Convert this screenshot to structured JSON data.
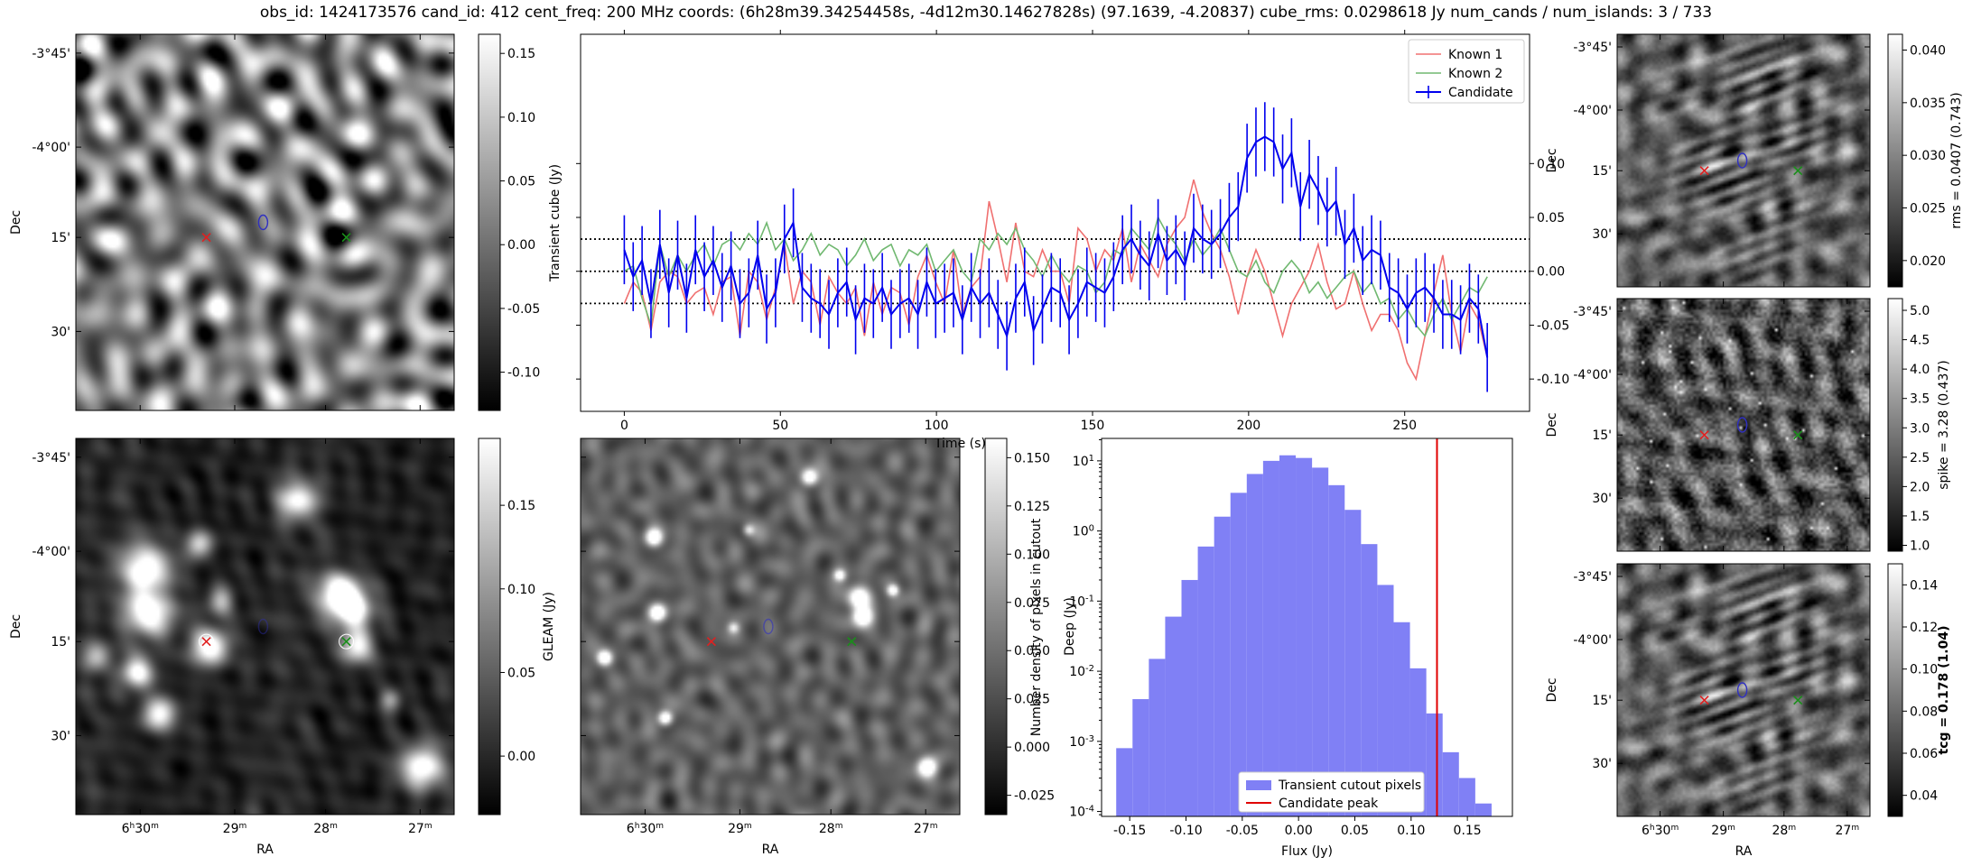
{
  "title": "obs_id: 1424173576 cand_id: 412 cent_freq: 200 MHz coords: (6h28m39.34254458s, -4d12m30.14627828s) (97.1639, -4.20837) cube_rms: 0.0298618 Jy num_cands / num_islands: 3 / 733",
  "sky": {
    "dec_ticks": [
      "-3°45'",
      "-4°00'",
      "15'",
      "30'"
    ],
    "ra_ticks": [
      {
        "h": "6",
        "m": "30",
        "full": true
      },
      {
        "h": "",
        "m": "29",
        "full": false
      },
      {
        "h": "",
        "m": "28",
        "full": false
      },
      {
        "h": "",
        "m": "27",
        "full": false
      }
    ],
    "dec_label": "Dec",
    "ra_label": "RA",
    "marker_red": "#e02020",
    "marker_green": "#1a8f1a",
    "marker_blue": "#3030c0"
  },
  "chart_data": [
    {
      "id": "cube-image",
      "type": "heatmap",
      "colorbar_label": "",
      "clim": [
        -0.13,
        0.165
      ],
      "cbar_ticks": [
        "0.15",
        "0.10",
        "0.05",
        "0.00",
        "-0.05",
        "-0.10"
      ],
      "cbar_values": [
        0.15,
        0.1,
        0.05,
        0.0,
        -0.05,
        -0.1
      ],
      "texture": "cube"
    },
    {
      "id": "lightcurve",
      "type": "line",
      "xlabel": "Time (s)",
      "ylabel": "Transient cube (Jy)",
      "xlim": [
        -14,
        290
      ],
      "ylim": [
        -0.13,
        0.22
      ],
      "xticks": [
        0,
        50,
        100,
        150,
        200,
        250
      ],
      "yticks": [
        -0.1,
        -0.05,
        0.0,
        0.05,
        0.1
      ],
      "ytick_labels": [
        "-0.10",
        "-0.05",
        "0.00",
        "0.05",
        "0.10"
      ],
      "hlines": [
        0.0298618,
        0.0,
        -0.0298618
      ],
      "legend": [
        "Known 1",
        "Known 2",
        "Candidate"
      ],
      "colors": {
        "known1": "#f07070",
        "known2": "#70b870",
        "candidate": "#0000ee"
      },
      "candidate_y": [
        0.02,
        -0.005,
        0.01,
        -0.03,
        0.025,
        -0.02,
        0.015,
        -0.025,
        0.02,
        -0.005,
        0.01,
        -0.015,
        0.005,
        -0.03,
        -0.02,
        0.015,
        -0.035,
        -0.02,
        0.03,
        0.045,
        -0.015,
        -0.025,
        -0.03,
        -0.04,
        -0.02,
        -0.01,
        -0.045,
        -0.025,
        -0.03,
        -0.015,
        -0.04,
        -0.03,
        -0.025,
        -0.04,
        -0.01,
        -0.03,
        -0.025,
        -0.02,
        -0.045,
        -0.015,
        -0.03,
        -0.02,
        -0.04,
        -0.06,
        -0.025,
        -0.01,
        -0.055,
        -0.035,
        -0.015,
        -0.02,
        -0.045,
        -0.03,
        -0.01,
        -0.015,
        -0.02,
        -0.005,
        0.02,
        0.03,
        0.015,
        0.005,
        0.035,
        0.01,
        0.02,
        0.005,
        0.04,
        0.03,
        0.025,
        0.035,
        0.05,
        0.06,
        0.105,
        0.12,
        0.125,
        0.12,
        0.095,
        0.11,
        0.06,
        0.09,
        0.075,
        0.055,
        0.065,
        0.025,
        0.04,
        0.01,
        0.02,
        0.015,
        -0.015,
        -0.02,
        -0.035,
        -0.02,
        -0.015,
        -0.025,
        -0.04,
        -0.04,
        -0.045,
        -0.025,
        -0.035,
        -0.08
      ],
      "candidate_err": 0.032,
      "known1_y": [
        -0.03,
        -0.01,
        -0.02,
        -0.055,
        -0.01,
        0.0,
        -0.005,
        -0.03,
        -0.02,
        -0.015,
        -0.04,
        -0.01,
        -0.005,
        -0.06,
        0.0,
        -0.01,
        -0.045,
        -0.015,
        0.025,
        -0.03,
        0.0,
        -0.01,
        -0.05,
        -0.005,
        -0.02,
        -0.03,
        -0.015,
        -0.06,
        -0.01,
        -0.04,
        -0.015,
        -0.02,
        -0.05,
        -0.005,
        0.015,
        -0.01,
        -0.03,
        0.02,
        -0.04,
        -0.015,
        -0.005,
        0.065,
        0.03,
        -0.01,
        0.045,
        0.0,
        -0.005,
        0.02,
        0.0,
        0.0,
        -0.03,
        0.04,
        0.03,
        0.0,
        0.02,
        0.01,
        0.04,
        -0.01,
        0.025,
        0.01,
        -0.005,
        0.025,
        0.04,
        0.05,
        0.085,
        0.055,
        0.035,
        0.02,
        -0.005,
        -0.04,
        -0.005,
        0.02,
        0.0,
        -0.03,
        -0.06,
        -0.03,
        -0.015,
        0.0,
        0.025,
        -0.01,
        -0.035,
        -0.03,
        0.0,
        -0.03,
        -0.055,
        -0.04,
        -0.04,
        -0.055,
        -0.085,
        -0.1,
        -0.06,
        -0.02,
        0.015,
        -0.04,
        -0.075,
        -0.03,
        -0.045,
        -0.08
      ],
      "known2_y": [
        0.0,
        0.005,
        -0.025,
        -0.05,
        0.025,
        -0.005,
        0.015,
        0.0,
        0.015,
        0.025,
        0.005,
        0.025,
        0.03,
        0.02,
        0.035,
        0.025,
        0.045,
        0.02,
        0.03,
        0.01,
        0.02,
        0.035,
        0.015,
        0.025,
        0.02,
        0.005,
        0.015,
        0.03,
        0.01,
        0.02,
        0.025,
        0.005,
        0.02,
        0.015,
        0.025,
        0.0,
        0.01,
        0.02,
        0.0,
        -0.01,
        0.03,
        0.02,
        0.035,
        0.025,
        0.04,
        0.02,
        0.01,
        -0.005,
        0.015,
        0.0,
        -0.01,
        0.005,
        0.0,
        -0.02,
        -0.01,
        0.02,
        0.015,
        0.04,
        0.03,
        0.02,
        0.05,
        0.035,
        0.025,
        0.01,
        0.03,
        0.015,
        0.025,
        0.04,
        0.02,
        0.0,
        -0.005,
        0.01,
        -0.01,
        -0.02,
        0.0,
        0.01,
        0.0,
        -0.02,
        -0.01,
        -0.025,
        -0.015,
        -0.005,
        0.0,
        -0.02,
        -0.01,
        -0.03,
        -0.025,
        -0.045,
        -0.035,
        -0.05,
        -0.06,
        -0.04,
        -0.025,
        -0.045,
        -0.03,
        -0.015,
        -0.02,
        -0.005
      ]
    },
    {
      "id": "rms-image",
      "type": "heatmap",
      "colorbar_label": "rms = 0.0407 (0.743)",
      "clim": [
        0.0175,
        0.0415
      ],
      "cbar_ticks": [
        "0.040",
        "0.035",
        "0.030",
        "0.025",
        "0.020"
      ],
      "cbar_values": [
        0.04,
        0.035,
        0.03,
        0.025,
        0.02
      ],
      "texture": "striped"
    },
    {
      "id": "gleam-image",
      "type": "heatmap",
      "colorbar_label": "GLEAM (Jy)",
      "clim": [
        -0.035,
        0.19
      ],
      "cbar_ticks": [
        "0.15",
        "0.10",
        "0.05",
        "0.00"
      ],
      "cbar_values": [
        0.15,
        0.1,
        0.05,
        0.0
      ],
      "texture": "gleam"
    },
    {
      "id": "deep-image",
      "type": "heatmap",
      "colorbar_label": "Deep (Jy)",
      "clim": [
        -0.035,
        0.16
      ],
      "cbar_ticks": [
        "0.150",
        "0.125",
        "0.100",
        "0.075",
        "0.050",
        "0.025",
        "0.000",
        "-0.025"
      ],
      "cbar_values": [
        0.15,
        0.125,
        0.1,
        0.075,
        0.05,
        0.025,
        0.0,
        -0.025
      ],
      "texture": "deep"
    },
    {
      "id": "histogram",
      "type": "bar",
      "xlabel": "Flux (Jy)",
      "ylabel": "Number density of pixels in cutout",
      "xlim": [
        -0.175,
        0.19
      ],
      "ylim_log10": [
        -4.07,
        1.32
      ],
      "xticks": [
        -0.15,
        -0.1,
        -0.05,
        0.0,
        0.05,
        0.1,
        0.15
      ],
      "xtick_labels": [
        "-0.15",
        "-0.10",
        "-0.05",
        "0.00",
        "0.05",
        "0.10",
        "0.15"
      ],
      "ytick_exps": [
        1,
        0,
        -1,
        -2,
        -3,
        -4
      ],
      "bin_edges": [
        -0.162,
        -0.1475,
        -0.133,
        -0.1185,
        -0.104,
        -0.0895,
        -0.075,
        -0.0605,
        -0.046,
        -0.0315,
        -0.017,
        -0.0025,
        0.012,
        0.0265,
        0.041,
        0.0555,
        0.07,
        0.0845,
        0.099,
        0.1135,
        0.128,
        0.1425,
        0.157,
        0.1715
      ],
      "densities": [
        0.0008,
        0.004,
        0.015,
        0.06,
        0.2,
        0.6,
        1.6,
        3.5,
        6.5,
        10,
        12,
        11,
        8,
        4.5,
        2,
        0.65,
        0.17,
        0.05,
        0.011,
        0.0025,
        0.0007,
        0.0003,
        0.00013
      ],
      "candidate_peak": 0.123,
      "legend": [
        "Transient cutout pixels",
        "Candidate peak"
      ],
      "colors": {
        "bars": "#8080f5",
        "peak": "#e00000"
      }
    },
    {
      "id": "spike-image",
      "type": "heatmap",
      "colorbar_label": "spike = 3.28 (0.437)",
      "clim": [
        0.9,
        5.2
      ],
      "cbar_ticks": [
        "5.0",
        "4.5",
        "4.0",
        "3.5",
        "3.0",
        "2.5",
        "2.0",
        "1.5",
        "1.0"
      ],
      "cbar_values": [
        5.0,
        4.5,
        4.0,
        3.5,
        3.0,
        2.5,
        2.0,
        1.5,
        1.0
      ],
      "texture": "spike"
    },
    {
      "id": "tcg-image",
      "type": "heatmap",
      "colorbar_label": "tcg = 0.178 (1.04)",
      "clim": [
        0.03,
        0.15
      ],
      "cbar_ticks": [
        "0.14",
        "0.12",
        "0.10",
        "0.08",
        "0.06",
        "0.04"
      ],
      "cbar_values": [
        0.14,
        0.12,
        0.1,
        0.08,
        0.06,
        0.04
      ],
      "texture": "striped"
    }
  ]
}
